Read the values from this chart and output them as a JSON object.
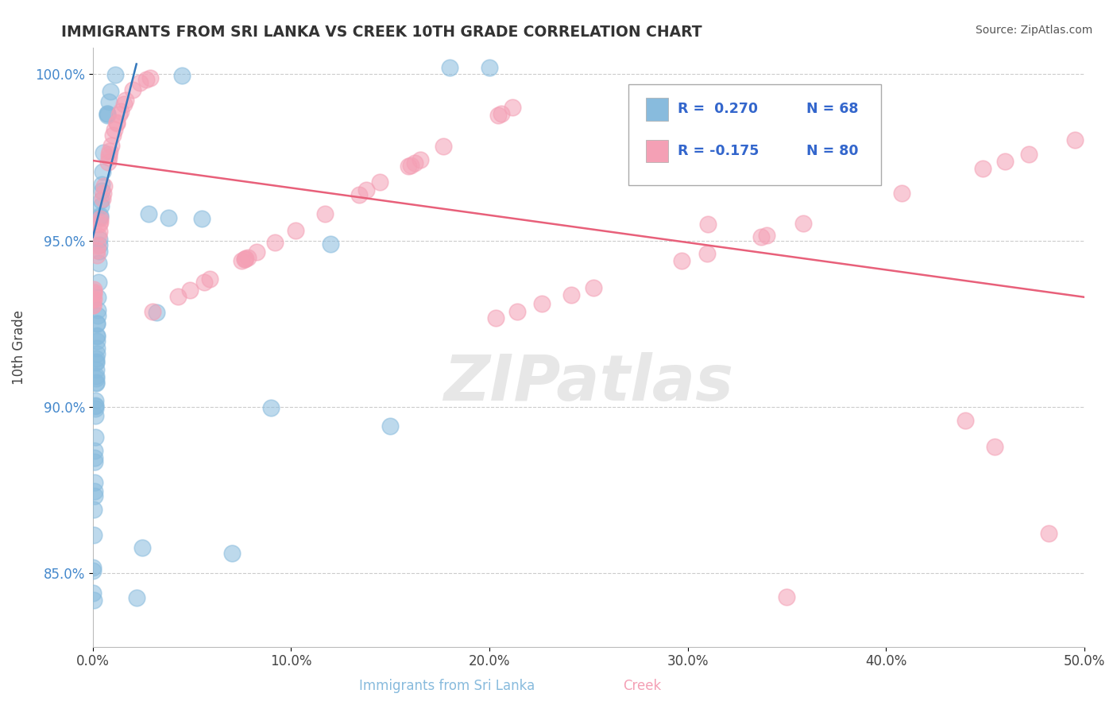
{
  "title": "IMMIGRANTS FROM SRI LANKA VS CREEK 10TH GRADE CORRELATION CHART",
  "source_text": "Source: ZipAtlas.com",
  "xlabel_blue": "Immigrants from Sri Lanka",
  "xlabel_pink": "Creek",
  "ylabel": "10th Grade",
  "xlim": [
    0.0,
    0.5
  ],
  "ylim": [
    0.828,
    1.008
  ],
  "yticks": [
    0.85,
    0.9,
    0.95,
    1.0
  ],
  "ytick_labels": [
    "85.0%",
    "90.0%",
    "95.0%",
    "100.0%"
  ],
  "xticks": [
    0.0,
    0.1,
    0.2,
    0.3,
    0.4,
    0.5
  ],
  "xtick_labels": [
    "0.0%",
    "10.0%",
    "20.0%",
    "30.0%",
    "40.0%",
    "50.0%"
  ],
  "blue_R": 0.27,
  "blue_N": 68,
  "pink_R": -0.175,
  "pink_N": 80,
  "blue_color": "#88bbdd",
  "pink_color": "#f4a0b5",
  "blue_line_color": "#3377bb",
  "pink_line_color": "#e8607a",
  "watermark_text": "ZIPatlas",
  "blue_line_x": [
    0.0,
    0.022
  ],
  "blue_line_y": [
    0.951,
    1.003
  ],
  "pink_line_x": [
    0.0,
    0.5
  ],
  "pink_line_y": [
    0.974,
    0.933
  ]
}
